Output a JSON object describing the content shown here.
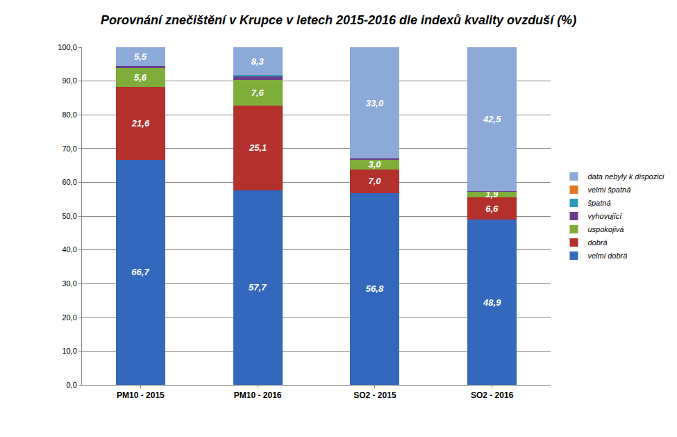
{
  "chart_data": {
    "type": "bar",
    "title": "Porovnání znečištění v Krupce v letech 2015-2016 dle indexů kvality ovzduší (%)",
    "categories": [
      "PM10 - 2015",
      "PM10 - 2016",
      "SO2 - 2015",
      "SO2 - 2016"
    ],
    "stacked": true,
    "data_labels": true,
    "grid": true,
    "legend": "right",
    "ylim": [
      0,
      100
    ],
    "yticks": [
      {
        "value": 0,
        "label": "0,0"
      },
      {
        "value": 10,
        "label": "10,0"
      },
      {
        "value": 20,
        "label": "20,0"
      },
      {
        "value": 30,
        "label": "30,0"
      },
      {
        "value": 40,
        "label": "40,0"
      },
      {
        "value": 50,
        "label": "50,0"
      },
      {
        "value": 60,
        "label": "60,0"
      },
      {
        "value": 70,
        "label": "70,0"
      },
      {
        "value": 80,
        "label": "80,0"
      },
      {
        "value": 90,
        "label": "90,0"
      },
      {
        "value": 100,
        "label": "100,0"
      }
    ],
    "series": [
      {
        "name": "velmi dobrá",
        "color": "#3468bd",
        "values": [
          66.7,
          57.7,
          56.8,
          48.9
        ],
        "value_labels": [
          "66,7",
          "57,7",
          "56,8",
          "48,9"
        ]
      },
      {
        "name": "dobrá",
        "color": "#b3302d",
        "values": [
          21.6,
          25.1,
          7.0,
          6.6
        ],
        "value_labels": [
          "21,6",
          "25,1",
          "7,0",
          "6,6"
        ]
      },
      {
        "name": "uspokojivá",
        "color": "#7ead3a",
        "values": [
          5.6,
          7.6,
          3.0,
          1.9
        ],
        "value_labels": [
          "5,6",
          "7,6",
          "3,0",
          "1,9"
        ]
      },
      {
        "name": "vyhovující",
        "color": "#6a3d8c",
        "values": [
          0.6,
          1.0,
          0.2,
          0.1
        ],
        "value_labels": [
          null,
          null,
          null,
          null
        ]
      },
      {
        "name": "špatná",
        "color": "#2e9ab5",
        "values": [
          0,
          0.3,
          0,
          0
        ],
        "value_labels": [
          null,
          null,
          null,
          null
        ]
      },
      {
        "name": "velmi špatná",
        "color": "#e87722",
        "values": [
          0,
          0,
          0,
          0
        ],
        "value_labels": [
          null,
          null,
          null,
          null
        ]
      },
      {
        "name": "data nebyly k dispozici",
        "color": "#8ca9d8",
        "values": [
          5.5,
          8.3,
          33.0,
          42.5
        ],
        "value_labels": [
          "5,5",
          "8,3",
          "33,0",
          "42,5"
        ]
      }
    ]
  }
}
